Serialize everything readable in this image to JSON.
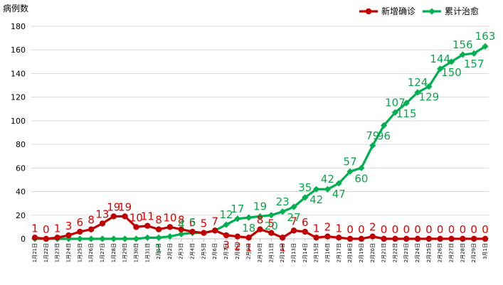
{
  "chart_data": {
    "type": "line",
    "ylabel": "病例数",
    "ylim": [
      0,
      180
    ],
    "yticks": [
      0,
      20,
      40,
      60,
      80,
      100,
      120,
      140,
      160,
      180
    ],
    "legend_position": "top-right",
    "categories": [
      "1月21日",
      "1月22日",
      "1月23日",
      "1月24日",
      "1月25日",
      "1月26日",
      "1月27日",
      "1月28日",
      "1月29日",
      "1月30日",
      "1月31日",
      "2月1日",
      "2月2日",
      "2月3日",
      "2月4日",
      "2月5日",
      "2月6日",
      "2月7日",
      "2月8日",
      "2月9日",
      "2月10日",
      "2月11日",
      "2月12日",
      "2月13日",
      "2月14日",
      "2月15日",
      "2月16日",
      "2月17日",
      "2月18日",
      "2月19日",
      "2月20日",
      "2月21日",
      "2月22日",
      "2月23日",
      "2月24日",
      "2月25日",
      "2月26日",
      "2月27日",
      "2月28日",
      "2月29日",
      "3月1日"
    ],
    "series": [
      {
        "name": "新增确诊",
        "color": "#c00000",
        "labelColor": "#e00000",
        "marker": "circle",
        "values": [
          1,
          0,
          1,
          3,
          6,
          8,
          13,
          19,
          19,
          10,
          11,
          8,
          10,
          8,
          6,
          5,
          7,
          3,
          2,
          1,
          8,
          5,
          1,
          7,
          6,
          1,
          2,
          1,
          0,
          0,
          2,
          0,
          0,
          0,
          0,
          0,
          0,
          0,
          0,
          0,
          0
        ]
      },
      {
        "name": "累计治愈",
        "color": "#00b050",
        "labelColor": "#0aa64a",
        "marker": "diamond",
        "values": [
          0,
          0,
          0,
          0,
          0,
          0,
          0,
          0,
          0,
          0,
          1,
          1,
          2,
          4,
          5,
          5,
          7,
          12,
          17,
          18,
          19,
          20,
          23,
          27,
          35,
          42,
          42,
          47,
          57,
          60,
          79,
          96,
          107,
          115,
          124,
          129,
          144,
          150,
          156,
          157,
          163
        ]
      }
    ],
    "data_labels": {
      "red": [
        {
          "i": 0,
          "text": "1"
        },
        {
          "i": 1,
          "text": "0"
        },
        {
          "i": 2,
          "text": "1"
        },
        {
          "i": 3,
          "text": "3"
        },
        {
          "i": 4,
          "text": "6"
        },
        {
          "i": 5,
          "text": "8"
        },
        {
          "i": 6,
          "text": "13"
        },
        {
          "i": 7,
          "text": "19"
        },
        {
          "i": 8,
          "text": "19"
        },
        {
          "i": 9,
          "text": "10"
        },
        {
          "i": 10,
          "text": "11"
        },
        {
          "i": 11,
          "text": "8"
        },
        {
          "i": 12,
          "text": "10"
        },
        {
          "i": 13,
          "text": "8"
        },
        {
          "i": 14,
          "text": "6"
        },
        {
          "i": 15,
          "text": "5"
        },
        {
          "i": 16,
          "text": "7"
        },
        {
          "i": 17,
          "text": "3"
        },
        {
          "i": 18,
          "text": "2"
        },
        {
          "i": 19,
          "text": "1"
        },
        {
          "i": 20,
          "text": "8"
        },
        {
          "i": 21,
          "text": "5"
        },
        {
          "i": 22,
          "text": "1"
        },
        {
          "i": 23,
          "text": "7"
        },
        {
          "i": 24,
          "text": "6"
        },
        {
          "i": 25,
          "text": "1"
        },
        {
          "i": 26,
          "text": "2"
        },
        {
          "i": 27,
          "text": "1"
        },
        {
          "i": 28,
          "text": "0"
        },
        {
          "i": 29,
          "text": "0"
        },
        {
          "i": 30,
          "text": "2"
        },
        {
          "i": 31,
          "text": "0"
        },
        {
          "i": 32,
          "text": "0"
        },
        {
          "i": 33,
          "text": "0"
        },
        {
          "i": 34,
          "text": "0"
        },
        {
          "i": 35,
          "text": "0"
        },
        {
          "i": 36,
          "text": "0"
        },
        {
          "i": 37,
          "text": "0"
        },
        {
          "i": 38,
          "text": "0"
        },
        {
          "i": 39,
          "text": "0"
        },
        {
          "i": 40,
          "text": "0"
        }
      ],
      "green": [
        {
          "i": 11,
          "text": "1"
        },
        {
          "i": 13,
          "text": "4"
        },
        {
          "i": 14,
          "text": "5"
        },
        {
          "i": 17,
          "text": "12"
        },
        {
          "i": 18,
          "text": "17"
        },
        {
          "i": 19,
          "text": "18"
        },
        {
          "i": 20,
          "text": "19"
        },
        {
          "i": 21,
          "text": "20"
        },
        {
          "i": 22,
          "text": "23"
        },
        {
          "i": 23,
          "text": "27"
        },
        {
          "i": 24,
          "text": "35"
        },
        {
          "i": 25,
          "text": "42"
        },
        {
          "i": 26,
          "text": "42"
        },
        {
          "i": 27,
          "text": "47"
        },
        {
          "i": 28,
          "text": "57"
        },
        {
          "i": 29,
          "text": "60"
        },
        {
          "i": 30,
          "text": "79"
        },
        {
          "i": 31,
          "text": "96"
        },
        {
          "i": 32,
          "text": "107"
        },
        {
          "i": 33,
          "text": "115"
        },
        {
          "i": 34,
          "text": "124"
        },
        {
          "i": 35,
          "text": "129"
        },
        {
          "i": 36,
          "text": "144"
        },
        {
          "i": 37,
          "text": "150"
        },
        {
          "i": 38,
          "text": "156"
        },
        {
          "i": 39,
          "text": "157"
        },
        {
          "i": 40,
          "text": "163"
        }
      ]
    }
  }
}
